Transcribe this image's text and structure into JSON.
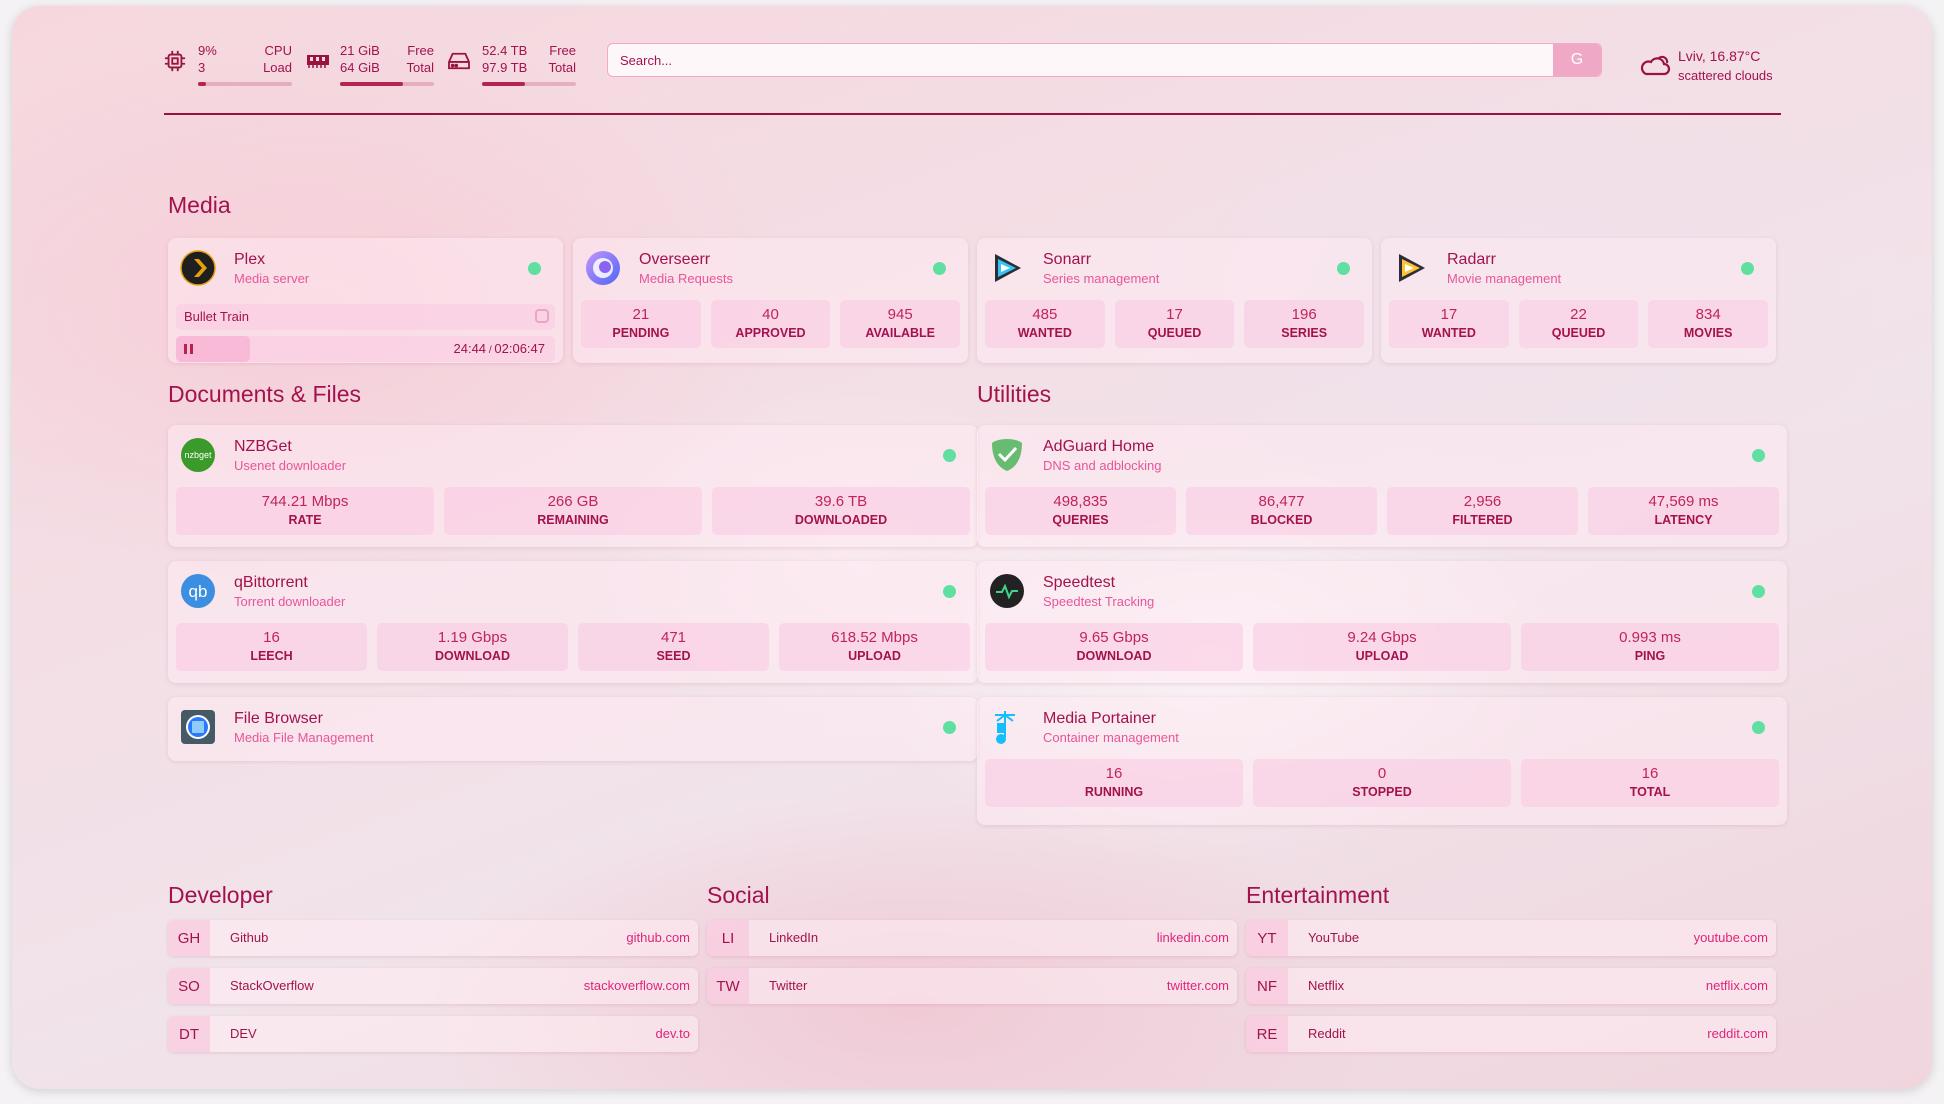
{
  "header": {
    "cpu": {
      "icon": "cpu-icon",
      "value1": "9%",
      "value2": "3",
      "label1": "CPU",
      "label2": "Load",
      "percent": 9
    },
    "memory": {
      "icon": "memory-icon",
      "value1": "21 GiB",
      "value2": "64 GiB",
      "label1": "Free",
      "label2": "Total",
      "percent": 67
    },
    "disk": {
      "icon": "hard-drive-icon",
      "value1": "52.4 TB",
      "value2": "97.9 TB",
      "label1": "Free",
      "label2": "Total",
      "percent": 46
    },
    "search": {
      "placeholder": "Search...",
      "engine_label": "G"
    },
    "weather": {
      "icon": "cloud-icon",
      "line1": "Lviv, 16.87°C",
      "line2": "scattered clouds"
    }
  },
  "colors": {
    "text": "#a3124d",
    "accent": "#e8559a",
    "status_online": "#5fe0a0"
  },
  "media": {
    "title": "Media",
    "services": [
      {
        "name": "Plex",
        "desc": "Media server",
        "icon": "plex-icon",
        "now_playing": {
          "title": "Bullet Train",
          "time": "24:44",
          "duration": "02:06:47",
          "progress": 0.195
        }
      },
      {
        "name": "Overseerr",
        "desc": "Media Requests",
        "icon": "overseerr-icon",
        "stats": [
          {
            "value": "21",
            "label": "PENDING"
          },
          {
            "value": "40",
            "label": "APPROVED"
          },
          {
            "value": "945",
            "label": "AVAILABLE"
          }
        ]
      },
      {
        "name": "Sonarr",
        "desc": "Series management",
        "icon": "sonarr-icon",
        "stats": [
          {
            "value": "485",
            "label": "WANTED"
          },
          {
            "value": "17",
            "label": "QUEUED"
          },
          {
            "value": "196",
            "label": "SERIES"
          }
        ]
      },
      {
        "name": "Radarr",
        "desc": "Movie management",
        "icon": "radarr-icon",
        "stats": [
          {
            "value": "17",
            "label": "WANTED"
          },
          {
            "value": "22",
            "label": "QUEUED"
          },
          {
            "value": "834",
            "label": "MOVIES"
          }
        ]
      }
    ]
  },
  "documents": {
    "title": "Documents & Files",
    "services": [
      {
        "name": "NZBGet",
        "desc": "Usenet downloader",
        "icon": "nzbget-icon",
        "logo_text": "nzbget",
        "stats": [
          {
            "value": "744.21 Mbps",
            "label": "RATE"
          },
          {
            "value": "266 GB",
            "label": "REMAINING"
          },
          {
            "value": "39.6 TB",
            "label": "DOWNLOADED"
          }
        ]
      },
      {
        "name": "qBittorrent",
        "desc": "Torrent downloader",
        "icon": "qbittorrent-icon",
        "logo_text": "qb",
        "stats": [
          {
            "value": "16",
            "label": "LEECH"
          },
          {
            "value": "1.19 Gbps",
            "label": "DOWNLOAD"
          },
          {
            "value": "471",
            "label": "SEED"
          },
          {
            "value": "618.52 Mbps",
            "label": "UPLOAD"
          }
        ]
      },
      {
        "name": "File Browser",
        "desc": "Media File Management",
        "icon": "filebrowser-icon"
      }
    ]
  },
  "utilities": {
    "title": "Utilities",
    "services": [
      {
        "name": "AdGuard Home",
        "desc": "DNS and adblocking",
        "icon": "adguard-icon",
        "stats": [
          {
            "value": "498,835",
            "label": "QUERIES"
          },
          {
            "value": "86,477",
            "label": "BLOCKED"
          },
          {
            "value": "2,956",
            "label": "FILTERED"
          },
          {
            "value": "47,569 ms",
            "label": "LATENCY"
          }
        ]
      },
      {
        "name": "Speedtest",
        "desc": "Speedtest Tracking",
        "icon": "speedtest-icon",
        "stats": [
          {
            "value": "9.65 Gbps",
            "label": "DOWNLOAD"
          },
          {
            "value": "9.24 Gbps",
            "label": "UPLOAD"
          },
          {
            "value": "0.993 ms",
            "label": "PING"
          }
        ]
      },
      {
        "name": "Media Portainer",
        "desc": "Container management",
        "icon": "portainer-icon",
        "stats": [
          {
            "value": "16",
            "label": "RUNNING"
          },
          {
            "value": "0",
            "label": "STOPPED"
          },
          {
            "value": "16",
            "label": "TOTAL"
          }
        ]
      }
    ]
  },
  "bookmarks": [
    {
      "title": "Developer",
      "items": [
        {
          "abbr": "GH",
          "name": "Github",
          "url": "github.com"
        },
        {
          "abbr": "SO",
          "name": "StackOverflow",
          "url": "stackoverflow.com"
        },
        {
          "abbr": "DT",
          "name": "DEV",
          "url": "dev.to"
        }
      ]
    },
    {
      "title": "Social",
      "items": [
        {
          "abbr": "LI",
          "name": "LinkedIn",
          "url": "linkedin.com"
        },
        {
          "abbr": "TW",
          "name": "Twitter",
          "url": "twitter.com"
        }
      ]
    },
    {
      "title": "Entertainment",
      "items": [
        {
          "abbr": "YT",
          "name": "YouTube",
          "url": "youtube.com"
        },
        {
          "abbr": "NF",
          "name": "Netflix",
          "url": "netflix.com"
        },
        {
          "abbr": "RE",
          "name": "Reddit",
          "url": "reddit.com"
        }
      ]
    }
  ]
}
